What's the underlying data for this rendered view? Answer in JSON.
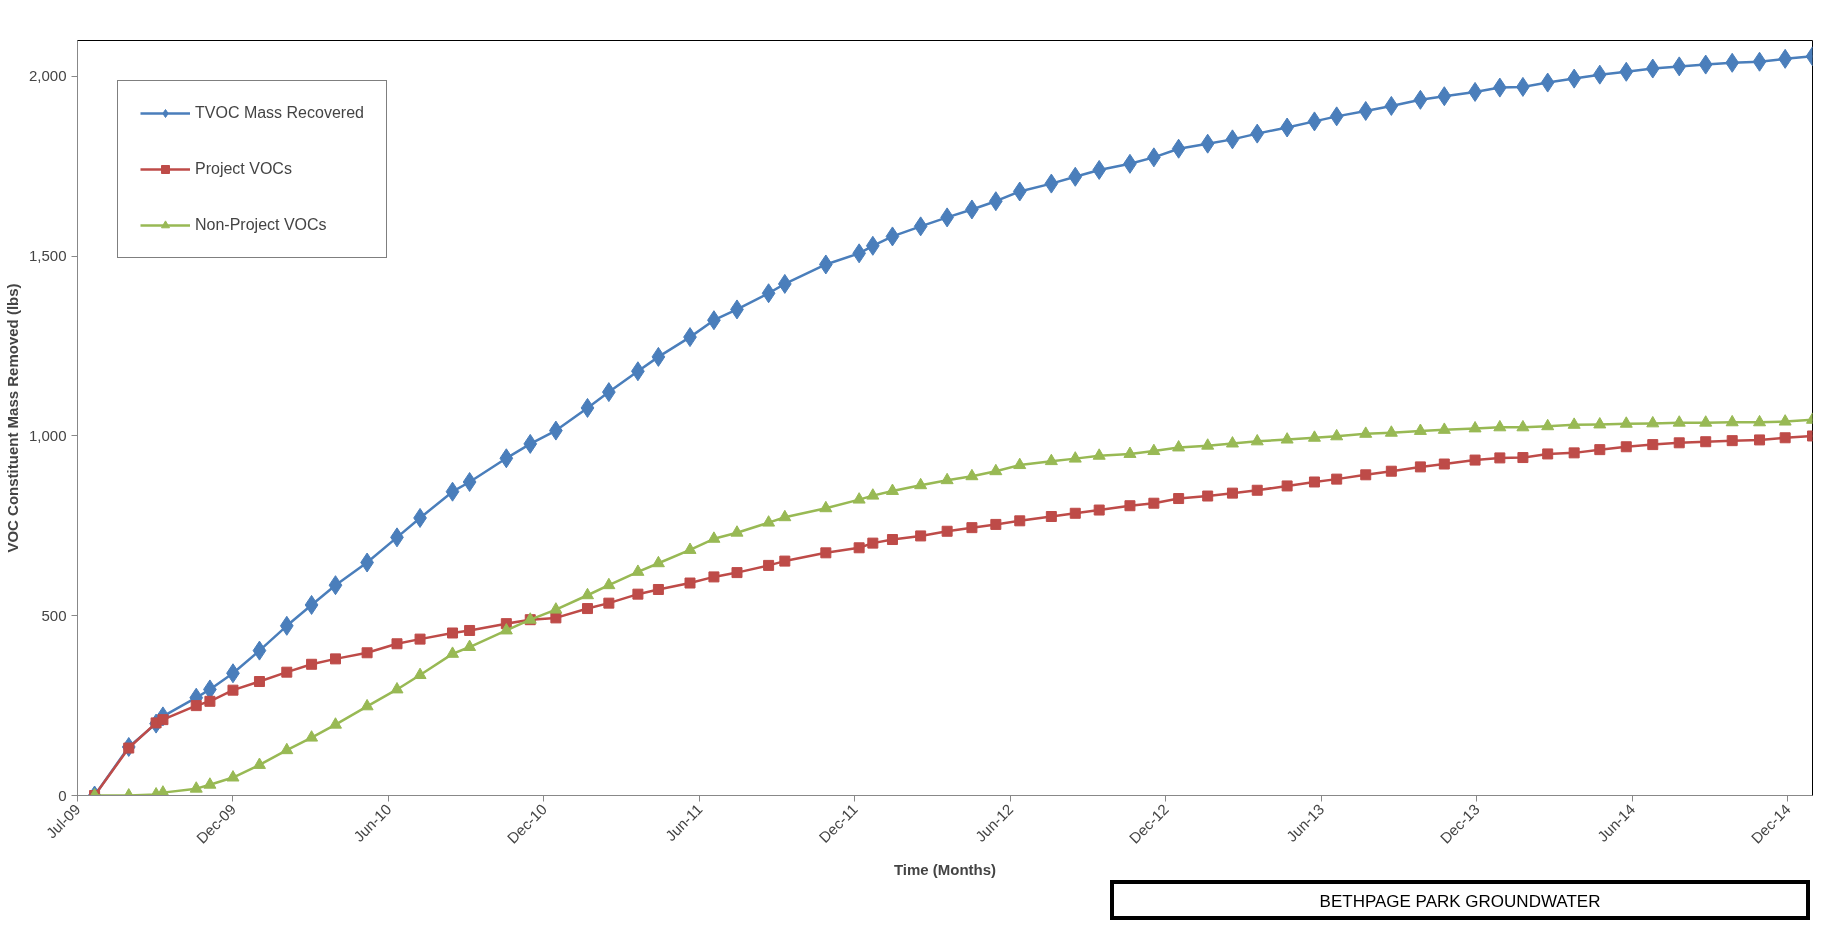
{
  "chart_data": {
    "type": "line",
    "xlabel": "Time (Months)",
    "ylabel": "VOC Constituent Mass Removed (lbs)",
    "x": [
      "2009-07-21",
      "2009-08-30",
      "2009-10-01",
      "2009-10-09",
      "2009-11-17",
      "2009-12-03",
      "2009-12-30",
      "2010-01-30",
      "2010-03-03",
      "2010-04-01",
      "2010-04-29",
      "2010-06-05",
      "2010-07-10",
      "2010-08-06",
      "2010-09-13",
      "2010-10-03",
      "2010-11-15",
      "2010-12-13",
      "2011-01-12",
      "2011-02-18",
      "2011-03-15",
      "2011-04-18",
      "2011-05-12",
      "2011-06-18",
      "2011-07-16",
      "2011-08-12",
      "2011-09-18",
      "2011-10-07",
      "2011-11-24",
      "2012-01-02",
      "2012-01-18",
      "2012-02-10",
      "2012-03-14",
      "2012-04-14",
      "2012-05-13",
      "2012-06-10",
      "2012-07-08",
      "2012-08-14",
      "2012-09-11",
      "2012-10-09",
      "2012-11-14",
      "2012-12-12",
      "2013-01-10",
      "2013-02-13",
      "2013-03-14",
      "2013-04-12",
      "2013-05-17",
      "2013-06-18",
      "2013-07-14",
      "2013-08-17",
      "2013-09-16",
      "2013-10-20",
      "2013-11-17",
      "2013-12-23",
      "2014-01-21",
      "2014-02-17",
      "2014-03-18",
      "2014-04-18",
      "2014-05-18",
      "2014-06-18",
      "2014-07-19",
      "2014-08-19",
      "2014-09-19",
      "2014-10-20",
      "2014-11-21",
      "2014-12-21",
      "2015-01-22"
    ],
    "series": [
      {
        "name": "TVOC Mass Recovered",
        "color": "#4a7ebb",
        "marker": "diamond",
        "values": [
          0,
          135,
          200,
          220,
          272,
          295,
          340,
          403,
          472,
          530,
          585,
          648,
          718,
          772,
          845,
          872,
          938,
          978,
          1015,
          1078,
          1122,
          1180,
          1220,
          1275,
          1322,
          1352,
          1397,
          1423,
          1477,
          1508,
          1529,
          1555,
          1583,
          1608,
          1630,
          1653,
          1680,
          1702,
          1721,
          1740,
          1757,
          1775,
          1799,
          1813,
          1825,
          1841,
          1858,
          1875,
          1889,
          1904,
          1918,
          1935,
          1945,
          1957,
          1969,
          1971,
          1983,
          1994,
          2005,
          2013,
          2022,
          2028,
          2033,
          2038,
          2041,
          2049,
          2056
        ]
      },
      {
        "name": "Project VOCs",
        "color": "#be4b48",
        "marker": "square",
        "values": [
          0,
          132,
          202,
          211,
          250,
          262,
          293,
          317,
          343,
          365,
          380,
          397,
          422,
          435,
          452,
          459,
          478,
          489,
          494,
          520,
          535,
          560,
          573,
          591,
          608,
          620,
          640,
          652,
          675,
          689,
          702,
          712,
          722,
          735,
          745,
          754,
          764,
          776,
          785,
          794,
          806,
          813,
          826,
          833,
          841,
          849,
          861,
          872,
          880,
          892,
          902,
          914,
          922,
          933,
          939,
          940,
          950,
          953,
          962,
          970,
          976,
          981,
          984,
          987,
          989,
          995,
          1000
        ]
      },
      {
        "name": "Non-Project VOCs",
        "color": "#98b954",
        "marker": "triangle",
        "values": [
          0,
          0,
          3,
          8,
          19,
          30,
          50,
          85,
          126,
          161,
          197,
          248,
          295,
          335,
          394,
          413,
          459,
          489,
          517,
          557,
          585,
          622,
          646,
          683,
          714,
          731,
          759,
          774,
          799,
          823,
          834,
          847,
          863,
          877,
          888,
          902,
          919,
          930,
          937,
          945,
          950,
          958,
          968,
          973,
          979,
          985,
          990,
          995,
          999,
          1006,
          1009,
          1014,
          1017,
          1021,
          1024,
          1024,
          1027,
          1031,
          1032,
          1034,
          1035,
          1037,
          1037,
          1038,
          1038,
          1040,
          1045
        ]
      }
    ],
    "xlim": [
      "2009-07-01",
      "2015-01-22"
    ],
    "xticks": [
      {
        "value": "2009-07-01",
        "label": "Jul-09"
      },
      {
        "value": "2009-12-30",
        "label": "Dec-09"
      },
      {
        "value": "2010-06-30",
        "label": "Jun-10"
      },
      {
        "value": "2010-12-29",
        "label": "Dec-10"
      },
      {
        "value": "2011-06-29",
        "label": "Jun-11"
      },
      {
        "value": "2011-12-28",
        "label": "Dec-11"
      },
      {
        "value": "2012-06-27",
        "label": "Jun-12"
      },
      {
        "value": "2012-12-26",
        "label": "Dec-12"
      },
      {
        "value": "2013-06-26",
        "label": "Jun-13"
      },
      {
        "value": "2013-12-25",
        "label": "Dec-13"
      },
      {
        "value": "2014-06-25",
        "label": "Jun-14"
      },
      {
        "value": "2014-12-24",
        "label": "Dec-14"
      }
    ],
    "ylim": [
      0,
      2100
    ],
    "yticks": [
      {
        "value": 0,
        "label": "0"
      },
      {
        "value": 500,
        "label": "500"
      },
      {
        "value": 1000,
        "label": "1,000"
      },
      {
        "value": 1500,
        "label": "1,500"
      },
      {
        "value": 2000,
        "label": "2,000"
      }
    ],
    "grid": false,
    "legend": "top left",
    "line_style": "solid",
    "annotations": [
      "BETHPAGE PARK GROUNDWATER"
    ]
  }
}
